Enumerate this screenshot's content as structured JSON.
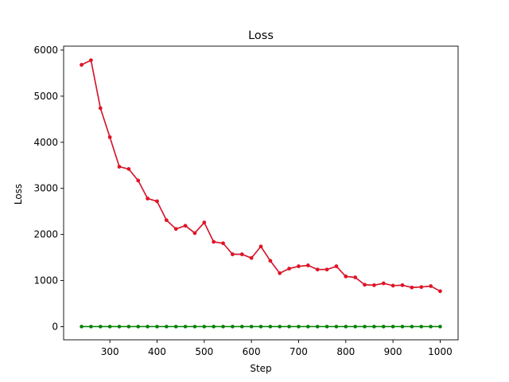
{
  "chart_data": {
    "type": "line",
    "title": "Loss",
    "xlabel": "Step",
    "ylabel": "Loss",
    "xlim": [
      202,
      1038
    ],
    "ylim": [
      -285,
      6085
    ],
    "xticks": [
      300,
      400,
      500,
      600,
      700,
      800,
      900,
      1000
    ],
    "yticks": [
      0,
      1000,
      2000,
      3000,
      4000,
      5000,
      6000
    ],
    "x": [
      240,
      260,
      280,
      300,
      320,
      340,
      360,
      380,
      400,
      420,
      440,
      460,
      480,
      500,
      520,
      540,
      560,
      580,
      600,
      620,
      640,
      660,
      680,
      700,
      720,
      740,
      760,
      780,
      800,
      820,
      840,
      860,
      880,
      900,
      920,
      940,
      960,
      980,
      1000
    ],
    "series": [
      {
        "color": "#1f3fd1",
        "marker": "circle",
        "values": [
          5680,
          5780,
          4740,
          4110,
          3470,
          3420,
          3170,
          2780,
          2720,
          2310,
          2120,
          2190,
          2030,
          2260,
          1840,
          1810,
          1570,
          1570,
          1490,
          1740,
          1430,
          1160,
          1260,
          1310,
          1330,
          1240,
          1240,
          1310,
          1090,
          1070,
          910,
          900,
          940,
          890,
          900,
          850,
          860,
          880,
          770
        ]
      },
      {
        "color": "#e8121c",
        "marker": "circle",
        "values": [
          5680,
          5780,
          4740,
          4110,
          3470,
          3420,
          3170,
          2780,
          2720,
          2310,
          2120,
          2190,
          2030,
          2260,
          1840,
          1810,
          1570,
          1570,
          1490,
          1740,
          1430,
          1160,
          1260,
          1310,
          1330,
          1240,
          1240,
          1310,
          1090,
          1070,
          910,
          900,
          940,
          890,
          900,
          850,
          860,
          880,
          770
        ]
      },
      {
        "color": "#008000",
        "marker": "circle",
        "values": [
          2,
          2,
          2,
          2,
          2,
          2,
          2,
          2,
          2,
          2,
          2,
          2,
          2,
          2,
          2,
          2,
          2,
          2,
          2,
          2,
          2,
          2,
          2,
          2,
          2,
          2,
          2,
          2,
          2,
          2,
          2,
          2,
          2,
          2,
          2,
          2,
          2,
          2,
          2
        ]
      }
    ],
    "grid": false,
    "legend": "none"
  }
}
